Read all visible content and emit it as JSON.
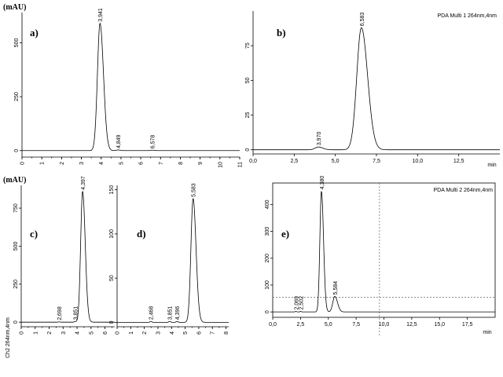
{
  "figure": {
    "unit_label_top": "(mAU)",
    "unit_label_bottom": "(mAU)"
  },
  "chart_data": [
    {
      "id": "a",
      "type": "line",
      "letter": "a)",
      "header": "",
      "xunit": "",
      "xlim": [
        0,
        11
      ],
      "ylim": [
        -30,
        640
      ],
      "xticks": [
        0,
        1,
        2,
        3,
        4,
        5,
        6,
        7,
        8,
        9,
        10,
        11
      ],
      "xtick_labels": [
        "0",
        "1",
        "2",
        "3",
        "4",
        "5",
        "6",
        "7",
        "8",
        "9",
        "10",
        "11"
      ],
      "yticks": [
        0,
        250,
        500
      ],
      "ytick_labels": [
        "0",
        "250",
        "500"
      ],
      "peaks": [
        {
          "rt": 3.941,
          "label": "3,941",
          "height": 590,
          "width": 0.13
        },
        {
          "rt": 4.849,
          "label": "4,849",
          "height": 3,
          "width": 0.08
        },
        {
          "rt": 6.578,
          "label": "6,578",
          "height": 2,
          "width": 0.08
        }
      ]
    },
    {
      "id": "b",
      "type": "line",
      "letter": "b)",
      "header": "PDA Multi 1 264nm,4nm",
      "xunit": "min",
      "xlim": [
        0,
        15
      ],
      "ylim": [
        -3,
        100
      ],
      "xticks": [
        0,
        2.5,
        5,
        7.5,
        10,
        12.5
      ],
      "xtick_labels": [
        "0,0",
        "2,5",
        "5,0",
        "7,5",
        "10,0",
        "12,5"
      ],
      "yticks": [
        0,
        25,
        50,
        75
      ],
      "ytick_labels": [
        "0",
        "25",
        "50",
        "75"
      ],
      "peaks": [
        {
          "rt": 3.97,
          "label": "3,970",
          "height": 2,
          "width": 0.2
        },
        {
          "rt": 6.583,
          "label": "6,583",
          "height": 88,
          "width": 0.28
        }
      ]
    },
    {
      "id": "c",
      "type": "line",
      "letter": "c)",
      "header": "",
      "xunit": "",
      "side_label": "Ch2 264nm,4nm",
      "xlim": [
        0,
        6.7
      ],
      "ylim": [
        -30,
        900
      ],
      "xticks": [
        0,
        1,
        2,
        3,
        4,
        5,
        6
      ],
      "xtick_labels": [
        "0",
        "1",
        "2",
        "3",
        "4",
        "5",
        "6"
      ],
      "yticks": [
        0,
        250,
        500,
        750
      ],
      "ytick_labels": [
        "0",
        "250",
        "500",
        "750"
      ],
      "peaks": [
        {
          "rt": 2.698,
          "label": "2,698",
          "height": 2,
          "width": 0.06
        },
        {
          "rt": 3.851,
          "label": "3,851",
          "height": 4,
          "width": 0.06
        },
        {
          "rt": 4.397,
          "label": "4,397",
          "height": 860,
          "width": 0.14
        }
      ]
    },
    {
      "id": "d",
      "type": "line",
      "letter": "d)",
      "header": "",
      "xunit": "",
      "xlim": [
        0,
        8.2
      ],
      "ylim": [
        -5,
        155
      ],
      "xticks": [
        0,
        1,
        2,
        3,
        4,
        5,
        6,
        7,
        8
      ],
      "xtick_labels": [
        "0",
        "1",
        "2",
        "3",
        "4",
        "5",
        "6",
        "7",
        "8"
      ],
      "yticks": [
        0,
        50,
        100,
        150
      ],
      "ytick_labels": [
        "0",
        "50",
        "100",
        "150"
      ],
      "peaks": [
        {
          "rt": 2.468,
          "label": "2,468",
          "height": 1,
          "width": 0.06
        },
        {
          "rt": 3.851,
          "label": "3,851",
          "height": 1,
          "width": 0.06
        },
        {
          "rt": 4.396,
          "label": "4,396",
          "height": 1,
          "width": 0.06
        },
        {
          "rt": 5.583,
          "label": "5,583",
          "height": 140,
          "width": 0.16
        }
      ]
    },
    {
      "id": "e",
      "type": "line",
      "letter": "e)",
      "header": "PDA Multi 2 264nm,4nm",
      "xunit": "min",
      "xlim": [
        0,
        20
      ],
      "ylim": [
        -20,
        480
      ],
      "xticks": [
        0,
        2.5,
        5,
        7.5,
        10,
        12.5,
        15,
        17.5
      ],
      "xtick_labels": [
        "0,0",
        "2,5",
        "5,0",
        "7,5",
        "10,0",
        "12,5",
        "15,0",
        "17,5"
      ],
      "yticks": [
        0,
        100,
        200,
        300,
        400
      ],
      "ytick_labels": [
        "0",
        "100",
        "200",
        "300",
        "400"
      ],
      "peaks": [
        {
          "rt": 2.069,
          "label": "2,069",
          "height": 2,
          "width": 0.05
        },
        {
          "rt": 2.502,
          "label": "2,502",
          "height": 2,
          "width": 0.05
        },
        {
          "rt": 4.38,
          "label": "4,380",
          "height": 450,
          "width": 0.14
        },
        {
          "rt": 5.584,
          "label": "5,584",
          "height": 58,
          "width": 0.18
        }
      ],
      "cursor": {
        "x": 9.6,
        "y": 55
      }
    }
  ]
}
